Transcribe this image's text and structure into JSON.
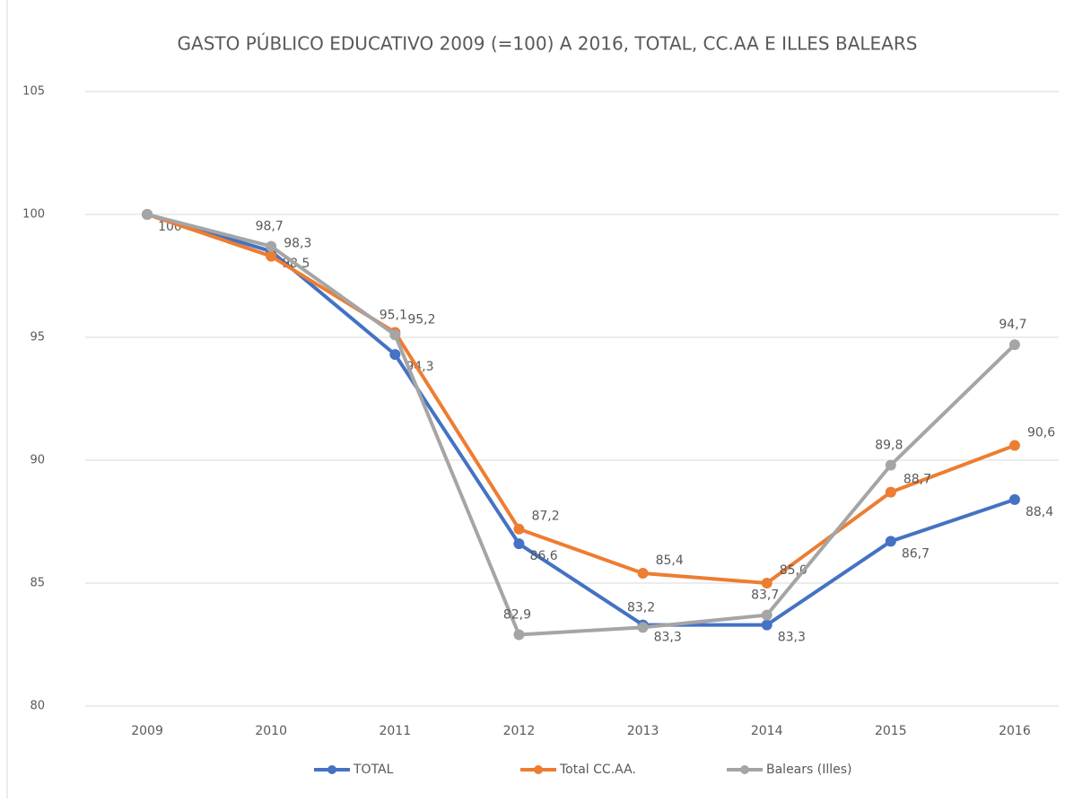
{
  "chart_data": {
    "type": "line",
    "title": "GASTO PÚBLICO EDUCATIVO 2009 (=100) A 2016, TOTAL, CC.AA E ILLES BALEARS",
    "categories": [
      "2009",
      "2010",
      "2011",
      "2012",
      "2013",
      "2014",
      "2015",
      "2016"
    ],
    "series": [
      {
        "name": "TOTAL",
        "color": "#4472c4",
        "values": [
          100,
          98.5,
          94.3,
          86.6,
          83.3,
          83.3,
          86.7,
          88.4
        ],
        "value_labels": [
          "100",
          "98,5",
          "94,3",
          "86,6",
          "83,3",
          "83,3",
          "86,7",
          "88,4"
        ]
      },
      {
        "name": "Total CC.AA.",
        "color": "#ed7d31",
        "values": [
          100,
          98.3,
          95.2,
          87.2,
          85.4,
          85.0,
          88.7,
          90.6
        ],
        "value_labels": [
          null,
          "98,3",
          "95,2",
          "87,2",
          "85,4",
          "85,0",
          "88,7",
          "90,6"
        ]
      },
      {
        "name": "Balears (Illes)",
        "color": "#a5a5a5",
        "values": [
          100,
          98.7,
          95.1,
          82.9,
          83.2,
          83.7,
          89.8,
          94.7
        ],
        "value_labels": [
          null,
          "98,7",
          "95,1",
          "82,9",
          "83,2",
          "83,7",
          "89,8",
          "94,7"
        ]
      }
    ],
    "ylim": [
      80,
      105
    ],
    "yticks": [
      80,
      85,
      90,
      95,
      100,
      105
    ],
    "grid": true,
    "legend": "bottom"
  }
}
